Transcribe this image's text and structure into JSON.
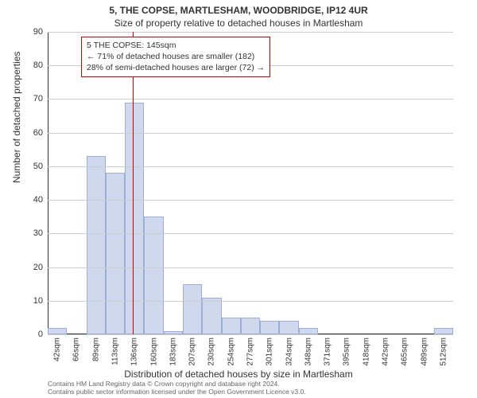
{
  "title_main": "5, THE COPSE, MARTLESHAM, WOODBRIDGE, IP12 4UR",
  "title_sub": "Size of property relative to detached houses in Martlesham",
  "ylabel": "Number of detached properties",
  "xlabel": "Distribution of detached houses by size in Martlesham",
  "footer_line1": "Contains HM Land Registry data © Crown copyright and database right 2024.",
  "footer_line2": "Contains public sector information licensed under the Open Government Licence v3.0.",
  "chart": {
    "type": "histogram",
    "ylim": [
      0,
      90
    ],
    "ytick_step": 10,
    "yticks": [
      0,
      10,
      20,
      30,
      40,
      50,
      60,
      70,
      80,
      90
    ],
    "xticks": [
      "42sqm",
      "66sqm",
      "89sqm",
      "113sqm",
      "136sqm",
      "160sqm",
      "183sqm",
      "207sqm",
      "230sqm",
      "254sqm",
      "277sqm",
      "301sqm",
      "324sqm",
      "348sqm",
      "371sqm",
      "395sqm",
      "418sqm",
      "442sqm",
      "465sqm",
      "489sqm",
      "512sqm"
    ],
    "bars": [
      2,
      0,
      53,
      48,
      69,
      35,
      1,
      15,
      11,
      5,
      5,
      4,
      4,
      2,
      0,
      0,
      0,
      0,
      0,
      0,
      2
    ],
    "bar_count": 21,
    "bar_fill": "#cfd8ec",
    "bar_border": "#9aaed6",
    "grid_color": "#cccccc",
    "background_color": "#ffffff",
    "reference_line": {
      "value_index": 4.4,
      "color": "#cc0000"
    },
    "annotation": {
      "line1": "5 THE COPSE: 145sqm",
      "line2": "← 71% of detached houses are smaller (182)",
      "line3": "28% of semi-detached houses are larger (72) →",
      "border_color": "#cc0000"
    },
    "title_fontsize": 12,
    "label_fontsize": 12,
    "tick_fontsize": 10
  }
}
